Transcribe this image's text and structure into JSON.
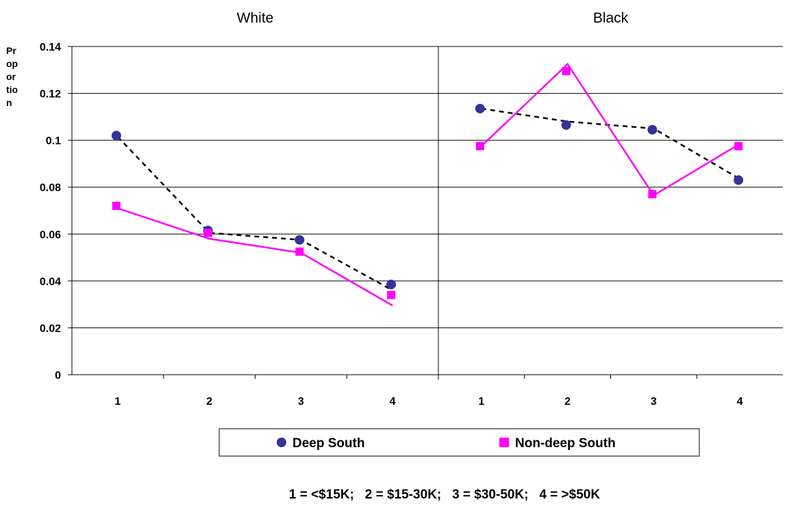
{
  "chart_data": {
    "type": "line",
    "panels": [
      {
        "title": "White",
        "categories": [
          "1",
          "2",
          "3",
          "4"
        ],
        "series": [
          {
            "name": "Deep South",
            "points": [
              0.102,
              0.0615,
              0.0575,
              0.0385
            ],
            "trend": [
              0.1015,
              0.0605,
              0.0575,
              0.036
            ]
          },
          {
            "name": "Non-deep South",
            "points": [
              0.072,
              0.0605,
              0.0525,
              0.034
            ],
            "trend": [
              0.071,
              0.058,
              0.052,
              0.0295
            ]
          }
        ]
      },
      {
        "title": "Black",
        "categories": [
          "1",
          "2",
          "3",
          "4"
        ],
        "series": [
          {
            "name": "Deep South",
            "points": [
              0.1135,
              0.1065,
              0.1045,
              0.083
            ],
            "trend": [
              0.1135,
              0.108,
              0.105,
              0.0835
            ]
          },
          {
            "name": "Non-deep South",
            "points": [
              0.0975,
              0.1295,
              0.077,
              0.0975
            ],
            "trend": [
              0.0975,
              0.1325,
              0.0765,
              0.0985
            ]
          }
        ]
      }
    ],
    "ylabel": "Proportion",
    "ylabel_lines": [
      "Pr",
      "op",
      "or",
      "tio",
      "n"
    ],
    "yticks": [
      "0",
      "0.02",
      "0.04",
      "0.06",
      "0.08",
      "0.1",
      "0.12",
      "0.14"
    ],
    "ylim": [
      0,
      0.14
    ],
    "grid": true,
    "legend": [
      {
        "name": "Deep South",
        "marker": "circle",
        "color": "#333399",
        "line": "dashed",
        "line_color": "#000000"
      },
      {
        "name": "Non-deep South",
        "marker": "square",
        "color": "#ff00ff",
        "line": "solid",
        "line_color": "#ff00ff"
      }
    ],
    "legend_position": "bottom",
    "note": "1 = <$15K;   2 = $15-30K;   3 = $30-50K;   4 = >$50K"
  }
}
